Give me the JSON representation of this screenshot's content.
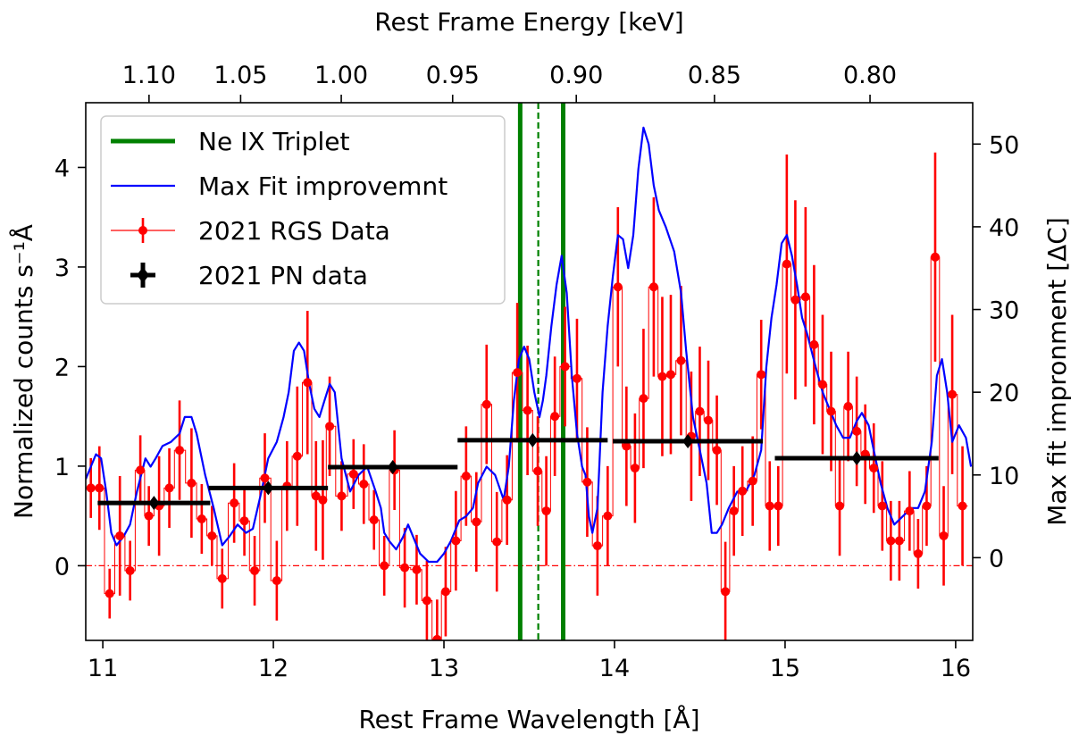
{
  "chart_data": {
    "type": "scatter",
    "xlabel": "Rest Frame Wavelength [Å]",
    "ylabel_left": "Normalized counts s⁻¹Å",
    "ylabel_right": "Max fit impronment [ΔC]",
    "xlabel_top": "Rest Frame Energy [keV]",
    "xlim": [
      10.9,
      16.1
    ],
    "ylim_left": [
      -0.75,
      4.65
    ],
    "ylim_right": [
      -10,
      55
    ],
    "x_ticks": [
      11,
      12,
      13,
      14,
      15,
      16
    ],
    "y_ticks_left": [
      0,
      1,
      2,
      3,
      4
    ],
    "y_ticks_right": [
      0,
      10,
      20,
      30,
      40,
      50
    ],
    "energy_ticks": [
      {
        "label": "1.10",
        "x": 11.271
      },
      {
        "label": "1.05",
        "x": 11.808
      },
      {
        "label": "1.00",
        "x": 12.398
      },
      {
        "label": "0.95",
        "x": 13.051
      },
      {
        "label": "0.90",
        "x": 13.776
      },
      {
        "label": "0.85",
        "x": 14.586
      },
      {
        "label": "0.80",
        "x": 15.498
      }
    ],
    "legend_position": "top-left",
    "legend": [
      {
        "label": "Ne IX Triplet",
        "color": "#008000",
        "style": "line"
      },
      {
        "label": "Max Fit improvemnt",
        "color": "#0000ff",
        "style": "thin-line"
      },
      {
        "label": "2021  RGS Data",
        "color": "#ff0000",
        "style": "marker-errorbar"
      },
      {
        "label": "2021 PN data",
        "color": "#000000",
        "style": "diamond-errorbar"
      }
    ],
    "ne_ix_lines": [
      {
        "x": 13.447,
        "style": "solid"
      },
      {
        "x": 13.553,
        "style": "dashed"
      },
      {
        "x": 13.699,
        "style": "solid"
      }
    ],
    "zero_line": {
      "y": 0,
      "color": "#ff0000",
      "style": "dash-dot"
    },
    "series": [
      {
        "name": "2021  RGS Data",
        "color": "#ff0000",
        "points": [
          [
            10.93,
            0.78,
            0.3
          ],
          [
            10.98,
            0.78,
            0.42
          ],
          [
            11.04,
            -0.28,
            0.25
          ],
          [
            11.1,
            0.3,
            0.6
          ],
          [
            11.16,
            -0.05,
            0.3
          ],
          [
            11.22,
            0.96,
            0.35
          ],
          [
            11.27,
            0.5,
            0.3
          ],
          [
            11.33,
            0.6,
            0.5
          ],
          [
            11.39,
            0.78,
            0.4
          ],
          [
            11.45,
            1.16,
            0.5
          ],
          [
            11.52,
            0.83,
            0.55
          ],
          [
            11.58,
            0.47,
            0.35
          ],
          [
            11.64,
            0.3,
            0.3
          ],
          [
            11.7,
            -0.13,
            0.3
          ],
          [
            11.77,
            0.63,
            0.4
          ],
          [
            11.83,
            0.45,
            0.35
          ],
          [
            11.89,
            -0.05,
            0.35
          ],
          [
            11.95,
            0.88,
            0.45
          ],
          [
            12.02,
            -0.15,
            0.4
          ],
          [
            12.08,
            0.8,
            0.45
          ],
          [
            12.14,
            1.1,
            0.7
          ],
          [
            12.2,
            1.84,
            0.72
          ],
          [
            12.25,
            0.7,
            0.55
          ],
          [
            12.29,
            0.66,
            0.6
          ],
          [
            12.33,
            1.4,
            0.5
          ],
          [
            12.4,
            0.7,
            0.35
          ],
          [
            12.47,
            0.92,
            0.35
          ],
          [
            12.53,
            0.82,
            0.4
          ],
          [
            12.59,
            0.46,
            0.3
          ],
          [
            12.65,
            0.0,
            0.3
          ],
          [
            12.71,
            0.96,
            0.4
          ],
          [
            12.77,
            -0.02,
            0.4
          ],
          [
            12.84,
            -0.04,
            0.35
          ],
          [
            12.9,
            -0.35,
            0.4
          ],
          [
            12.96,
            -0.74,
            0.4
          ],
          [
            13.01,
            -0.26,
            0.45
          ],
          [
            13.07,
            0.25,
            0.5
          ],
          [
            13.13,
            0.9,
            0.5
          ],
          [
            13.19,
            0.44,
            0.5
          ],
          [
            13.25,
            1.62,
            0.6
          ],
          [
            13.31,
            0.24,
            0.5
          ],
          [
            13.37,
            0.66,
            0.45
          ],
          [
            13.43,
            1.94,
            0.7
          ],
          [
            13.49,
            1.56,
            0.65
          ],
          [
            13.55,
            0.95,
            0.55
          ],
          [
            13.6,
            0.55,
            0.55
          ],
          [
            13.65,
            1.5,
            0.6
          ],
          [
            13.71,
            2.0,
            0.6
          ],
          [
            13.78,
            1.88,
            0.6
          ],
          [
            13.84,
            0.84,
            0.55
          ],
          [
            13.9,
            0.2,
            0.5
          ],
          [
            13.96,
            0.5,
            0.5
          ],
          [
            14.02,
            2.8,
            0.8
          ],
          [
            14.07,
            1.2,
            0.6
          ],
          [
            14.12,
            0.98,
            0.55
          ],
          [
            14.17,
            1.68,
            0.7
          ],
          [
            14.23,
            2.8,
            0.9
          ],
          [
            14.28,
            1.9,
            0.8
          ],
          [
            14.33,
            1.92,
            0.8
          ],
          [
            14.39,
            2.06,
            0.75
          ],
          [
            14.45,
            1.3,
            0.65
          ],
          [
            14.5,
            1.55,
            0.65
          ],
          [
            14.55,
            1.46,
            0.6
          ],
          [
            14.6,
            1.16,
            0.55
          ],
          [
            14.65,
            -0.26,
            0.5
          ],
          [
            14.7,
            0.55,
            0.45
          ],
          [
            14.75,
            0.75,
            0.45
          ],
          [
            14.81,
            0.85,
            0.45
          ],
          [
            14.86,
            1.92,
            0.55
          ],
          [
            14.91,
            0.6,
            0.45
          ],
          [
            14.96,
            0.6,
            0.4
          ],
          [
            15.01,
            3.03,
            1.1
          ],
          [
            15.06,
            2.67,
            1.0
          ],
          [
            15.12,
            2.7,
            0.9
          ],
          [
            15.17,
            2.22,
            0.8
          ],
          [
            15.22,
            1.82,
            0.7
          ],
          [
            15.27,
            1.55,
            0.6
          ],
          [
            15.32,
            0.6,
            0.5
          ],
          [
            15.37,
            1.6,
            0.55
          ],
          [
            15.42,
            1.35,
            0.55
          ],
          [
            15.47,
            1.12,
            0.5
          ],
          [
            15.52,
            0.98,
            0.45
          ],
          [
            15.57,
            0.6,
            0.45
          ],
          [
            15.62,
            0.25,
            0.4
          ],
          [
            15.67,
            0.25,
            0.4
          ],
          [
            15.73,
            0.55,
            0.4
          ],
          [
            15.78,
            0.12,
            0.35
          ],
          [
            15.83,
            0.6,
            0.4
          ],
          [
            15.88,
            3.1,
            1.05
          ],
          [
            15.93,
            0.3,
            0.5
          ],
          [
            15.98,
            1.72,
            0.8
          ],
          [
            16.04,
            0.6,
            0.6
          ]
        ]
      },
      {
        "name": "2021 PN data",
        "color": "#000000",
        "points": [
          [
            11.3,
            0.63,
            0.33
          ],
          [
            11.97,
            0.78,
            0.35
          ],
          [
            12.7,
            0.99,
            0.38
          ],
          [
            13.52,
            1.26,
            0.44
          ],
          [
            14.43,
            1.25,
            0.44
          ],
          [
            15.42,
            1.08,
            0.48
          ]
        ]
      },
      {
        "name": "Max Fit improvemnt",
        "color": "#0000ff",
        "axis": "right",
        "points": [
          [
            10.9,
            9.5
          ],
          [
            10.93,
            11
          ],
          [
            10.96,
            12.5
          ],
          [
            10.99,
            12
          ],
          [
            11.02,
            8
          ],
          [
            11.05,
            3
          ],
          [
            11.08,
            1.5
          ],
          [
            11.12,
            2.5
          ],
          [
            11.16,
            4
          ],
          [
            11.2,
            8
          ],
          [
            11.25,
            12
          ],
          [
            11.28,
            11
          ],
          [
            11.31,
            12
          ],
          [
            11.35,
            13.5
          ],
          [
            11.4,
            14
          ],
          [
            11.45,
            15
          ],
          [
            11.48,
            17
          ],
          [
            11.52,
            17
          ],
          [
            11.55,
            15
          ],
          [
            11.6,
            10
          ],
          [
            11.65,
            6
          ],
          [
            11.7,
            1.5
          ],
          [
            11.74,
            2.5
          ],
          [
            11.79,
            4
          ],
          [
            11.84,
            3
          ],
          [
            11.88,
            3.5
          ],
          [
            11.93,
            8
          ],
          [
            11.97,
            12
          ],
          [
            12.02,
            14
          ],
          [
            12.06,
            17
          ],
          [
            12.09,
            20
          ],
          [
            12.12,
            25
          ],
          [
            12.15,
            26
          ],
          [
            12.18,
            25
          ],
          [
            12.21,
            21
          ],
          [
            12.24,
            18
          ],
          [
            12.27,
            17
          ],
          [
            12.3,
            19
          ],
          [
            12.33,
            21
          ],
          [
            12.36,
            20
          ],
          [
            12.4,
            12
          ],
          [
            12.45,
            8
          ],
          [
            12.5,
            10
          ],
          [
            12.55,
            11
          ],
          [
            12.6,
            8
          ],
          [
            12.63,
            6
          ],
          [
            12.65,
            3
          ],
          [
            12.68,
            2
          ],
          [
            12.72,
            1
          ],
          [
            12.76,
            2.5
          ],
          [
            12.79,
            4
          ],
          [
            12.82,
            2.5
          ],
          [
            12.86,
            0.5
          ],
          [
            12.91,
            -0.5
          ],
          [
            12.96,
            -0.5
          ],
          [
            13.0,
            0.5
          ],
          [
            13.04,
            2
          ],
          [
            13.09,
            4.5
          ],
          [
            13.13,
            5
          ],
          [
            13.17,
            6
          ],
          [
            13.2,
            9
          ],
          [
            13.25,
            11
          ],
          [
            13.3,
            10
          ],
          [
            13.35,
            7
          ],
          [
            13.38,
            11
          ],
          [
            13.41,
            19
          ],
          [
            13.44,
            24
          ],
          [
            13.47,
            25.5
          ],
          [
            13.5,
            24
          ],
          [
            13.53,
            20
          ],
          [
            13.56,
            17
          ],
          [
            13.58,
            19
          ],
          [
            13.6,
            22
          ],
          [
            13.63,
            28
          ],
          [
            13.66,
            33
          ],
          [
            13.69,
            36.5
          ],
          [
            13.72,
            32
          ],
          [
            13.75,
            22
          ],
          [
            13.78,
            15
          ],
          [
            13.81,
            11
          ],
          [
            13.83,
            10
          ],
          [
            13.85,
            5
          ],
          [
            13.87,
            3
          ],
          [
            13.9,
            6
          ],
          [
            13.93,
            20
          ],
          [
            13.96,
            28
          ],
          [
            13.99,
            34
          ],
          [
            14.02,
            39
          ],
          [
            14.05,
            38.5
          ],
          [
            14.08,
            35
          ],
          [
            14.11,
            39
          ],
          [
            14.14,
            47
          ],
          [
            14.17,
            52
          ],
          [
            14.2,
            50
          ],
          [
            14.23,
            45
          ],
          [
            14.26,
            42
          ],
          [
            14.3,
            40
          ],
          [
            14.35,
            37
          ],
          [
            14.39,
            32
          ],
          [
            14.42,
            25
          ],
          [
            14.46,
            17
          ],
          [
            14.5,
            13
          ],
          [
            14.54,
            9
          ],
          [
            14.57,
            3
          ],
          [
            14.6,
            3
          ],
          [
            14.63,
            4
          ],
          [
            14.67,
            6
          ],
          [
            14.72,
            8
          ],
          [
            14.77,
            8
          ],
          [
            14.82,
            10
          ],
          [
            14.86,
            13
          ],
          [
            14.89,
            23
          ],
          [
            14.92,
            29
          ],
          [
            14.95,
            33
          ],
          [
            14.98,
            38
          ],
          [
            15.01,
            39
          ],
          [
            15.04,
            36.5
          ],
          [
            15.07,
            33
          ],
          [
            15.1,
            29
          ],
          [
            15.13,
            27
          ],
          [
            15.18,
            23
          ],
          [
            15.22,
            20
          ],
          [
            15.26,
            18
          ],
          [
            15.3,
            16
          ],
          [
            15.34,
            14.5
          ],
          [
            15.38,
            14.5
          ],
          [
            15.42,
            16.5
          ],
          [
            15.45,
            17.5
          ],
          [
            15.49,
            16
          ],
          [
            15.52,
            13
          ],
          [
            15.56,
            9
          ],
          [
            15.6,
            6
          ],
          [
            15.64,
            4
          ],
          [
            15.69,
            5
          ],
          [
            15.74,
            6
          ],
          [
            15.78,
            6
          ],
          [
            15.82,
            8
          ],
          [
            15.86,
            14
          ],
          [
            15.89,
            22
          ],
          [
            15.92,
            24
          ],
          [
            15.95,
            20
          ],
          [
            15.98,
            14
          ],
          [
            16.02,
            16
          ],
          [
            16.06,
            14.5
          ],
          [
            16.09,
            11
          ]
        ]
      }
    ]
  }
}
